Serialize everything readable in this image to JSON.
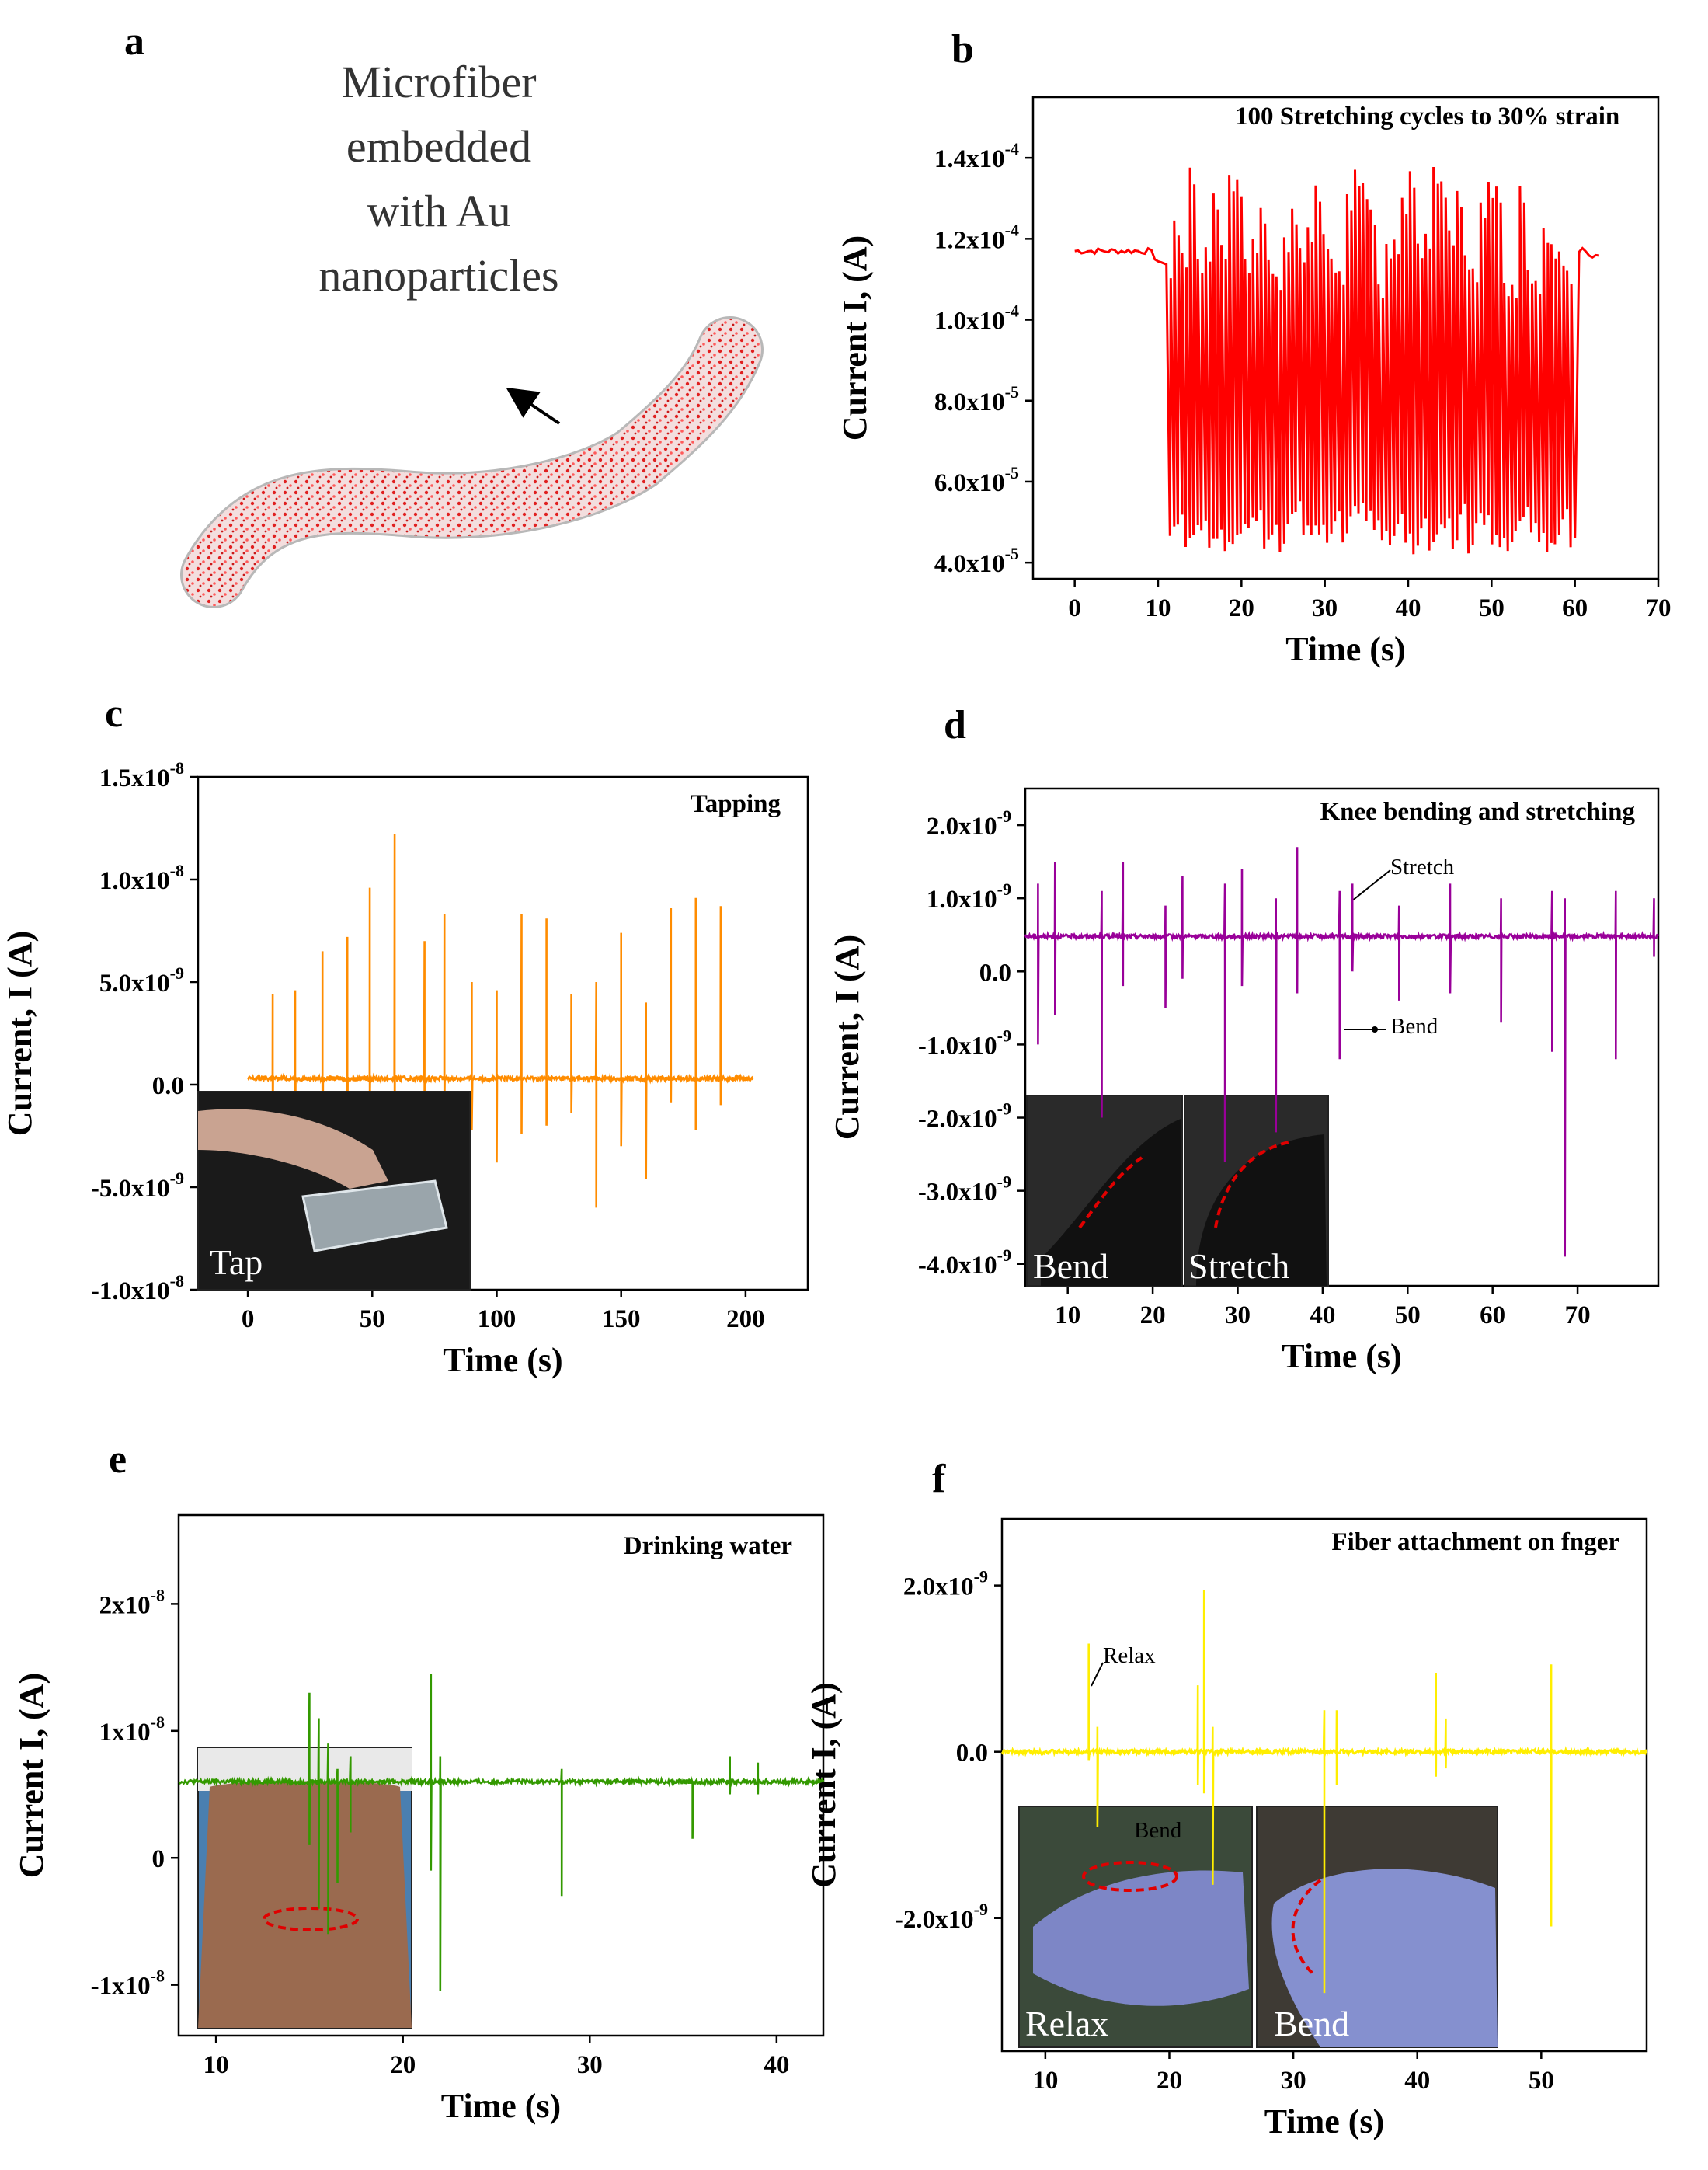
{
  "panel_labels": [
    "a",
    "b",
    "c",
    "d",
    "e",
    "f"
  ],
  "panel_a": {
    "caption_lines": [
      "Microfiber",
      "embedded",
      "with Au",
      "nanoparticles"
    ]
  },
  "chart_data": [
    {
      "id": "b",
      "type": "line",
      "title": "100 Stretching cycles to 30% strain",
      "xlabel": "Time (s)",
      "ylabel": "Current I, (A)",
      "xlim": [
        -5,
        70
      ],
      "ylim": [
        3.6e-05,
        0.000155
      ],
      "xticks": [
        "0",
        "10",
        "20",
        "30",
        "40",
        "50",
        "60",
        "70"
      ],
      "yticks": [
        {
          "mant": "4.0x10",
          "exp": "-5",
          "v": 4e-05
        },
        {
          "mant": "6.0x10",
          "exp": "-5",
          "v": 6e-05
        },
        {
          "mant": "8.0x10",
          "exp": "-5",
          "v": 8e-05
        },
        {
          "mant": "1.0x10",
          "exp": "-4",
          "v": 0.0001
        },
        {
          "mant": "1.2x10",
          "exp": "-4",
          "v": 0.00012
        },
        {
          "mant": "1.4x10",
          "exp": "-4",
          "v": 0.00014
        }
      ],
      "color": "#ff0000",
      "series": [
        {
          "kind": "cycles",
          "baseline_start": 0.000117,
          "baseline_end": 0.000116,
          "t_start": 11,
          "t_end": 60,
          "flat_before": [
            0,
            10.5
          ],
          "flat_after": [
            60.5,
            63
          ],
          "cycles": 52,
          "high_range": [
            0.000108,
            0.000138
          ],
          "low_range": [
            4.2e-05,
            5.3e-05
          ]
        }
      ]
    },
    {
      "id": "c",
      "type": "line",
      "title": "Tapping",
      "xlabel": "Time (s)",
      "ylabel": "Current, I (A)",
      "xlim": [
        -20,
        225
      ],
      "ylim": [
        -1e-08,
        1.5e-08
      ],
      "xticks": [
        "0",
        "50",
        "100",
        "150",
        "200"
      ],
      "yticks": [
        {
          "mant": "-1.0x10",
          "exp": "-8",
          "v": -1e-08
        },
        {
          "mant": "-5.0x10",
          "exp": "-9",
          "v": -5e-09
        },
        {
          "mant": "0.0",
          "exp": "",
          "v": 0
        },
        {
          "mant": "5.0x10",
          "exp": "-9",
          "v": 5e-09
        },
        {
          "mant": "1.0x10",
          "exp": "-8",
          "v": 1e-08
        },
        {
          "mant": "1.5x10",
          "exp": "-8",
          "v": 1.5e-08
        }
      ],
      "color": "#ff8c00",
      "baseline": 3e-10,
      "t_range": [
        0,
        203
      ],
      "spikes": [
        {
          "t": 10,
          "hi": 4.4e-09,
          "lo": -2e-09
        },
        {
          "t": 19,
          "hi": 4.6e-09,
          "lo": -6e-09
        },
        {
          "t": 30,
          "hi": 6.5e-09,
          "lo": -7.3e-09
        },
        {
          "t": 40,
          "hi": 7.2e-09,
          "lo": -2.8e-09
        },
        {
          "t": 49,
          "hi": 9.6e-09,
          "lo": -9e-10
        },
        {
          "t": 59,
          "hi": 1.22e-08,
          "lo": -2.2e-09
        },
        {
          "t": 71,
          "hi": 7e-09,
          "lo": -1.6e-09
        },
        {
          "t": 79,
          "hi": 8.3e-09,
          "lo": -9e-10
        },
        {
          "t": 90,
          "hi": 5e-09,
          "lo": -2.2e-09
        },
        {
          "t": 100,
          "hi": 4.6e-09,
          "lo": -3.8e-09
        },
        {
          "t": 110,
          "hi": 8.3e-09,
          "lo": -2.4e-09
        },
        {
          "t": 120,
          "hi": 8.1e-09,
          "lo": -2e-09
        },
        {
          "t": 130,
          "hi": 4.4e-09,
          "lo": -1.4e-09
        },
        {
          "t": 140,
          "hi": 5e-09,
          "lo": -6e-09
        },
        {
          "t": 150,
          "hi": 7.4e-09,
          "lo": -3e-09
        },
        {
          "t": 160,
          "hi": 4e-09,
          "lo": -4.6e-09
        },
        {
          "t": 170,
          "hi": 8.6e-09,
          "lo": -9e-10
        },
        {
          "t": 180,
          "hi": 9.1e-09,
          "lo": -2.2e-09
        },
        {
          "t": 190,
          "hi": 8.7e-09,
          "lo": -1e-09
        }
      ],
      "inset": {
        "label": "Tap"
      }
    },
    {
      "id": "d",
      "type": "line",
      "title": "Knee bending and stretching",
      "xlabel": "Time (s)",
      "ylabel": "Current, I (A)",
      "xlim": [
        5,
        79.5
      ],
      "ylim": [
        -4.3e-09,
        2.5e-09
      ],
      "xticks": [
        "10",
        "20",
        "30",
        "40",
        "50",
        "60",
        "70"
      ],
      "yticks": [
        {
          "mant": "-4.0x10",
          "exp": "-9",
          "v": -4e-09
        },
        {
          "mant": "-3.0x10",
          "exp": "-9",
          "v": -3e-09
        },
        {
          "mant": "-2.0x10",
          "exp": "-9",
          "v": -2e-09
        },
        {
          "mant": "-1.0x10",
          "exp": "-9",
          "v": -1e-09
        },
        {
          "mant": "0.0",
          "exp": "",
          "v": 0
        },
        {
          "mant": "1.0x10",
          "exp": "-9",
          "v": 1e-09
        },
        {
          "mant": "2.0x10",
          "exp": "-9",
          "v": 2e-09
        }
      ],
      "color": "#990099",
      "baseline": 4.8e-10,
      "t_range": [
        5,
        79.5
      ],
      "spikes": [
        {
          "t": 6.5,
          "hi": 1.2e-09,
          "lo": -1e-09
        },
        {
          "t": 8.5,
          "hi": 1.5e-09,
          "lo": -6e-10
        },
        {
          "t": 14,
          "hi": 1.1e-09,
          "lo": -2e-09
        },
        {
          "t": 16.5,
          "hi": 1.5e-09,
          "lo": -2e-10
        },
        {
          "t": 21.5,
          "hi": 9e-10,
          "lo": -5e-10
        },
        {
          "t": 23.5,
          "hi": 1.3e-09,
          "lo": -1e-10
        },
        {
          "t": 28.5,
          "hi": 1.2e-09,
          "lo": -2.6e-09
        },
        {
          "t": 30.5,
          "hi": 1.4e-09,
          "lo": -2e-10
        },
        {
          "t": 34.5,
          "hi": 1e-09,
          "lo": -2.2e-09
        },
        {
          "t": 37,
          "hi": 1.7e-09,
          "lo": -3e-10
        },
        {
          "t": 42,
          "hi": 1.1e-09,
          "lo": -1.2e-09
        },
        {
          "t": 43.5,
          "hi": 1.2e-09,
          "lo": 0.0
        },
        {
          "t": 49,
          "hi": 9e-10,
          "lo": -4e-10
        },
        {
          "t": 55,
          "hi": 1.2e-09,
          "lo": -3e-10
        },
        {
          "t": 61,
          "hi": 1e-09,
          "lo": -7e-10
        },
        {
          "t": 67,
          "hi": 1.1e-09,
          "lo": -1.1e-09
        },
        {
          "t": 68.5,
          "hi": 1e-09,
          "lo": -3.9e-09
        },
        {
          "t": 74.5,
          "hi": 1.1e-09,
          "lo": -1.2e-09
        },
        {
          "t": 79,
          "hi": 1e-09,
          "lo": 2e-10
        }
      ],
      "annotations": [
        "Stretch",
        "Bend"
      ],
      "inset": {
        "labels": [
          "Bend",
          "Stretch"
        ]
      }
    },
    {
      "id": "e",
      "type": "line",
      "title": "Drinking water",
      "xlabel": "Time (s)",
      "ylabel": "Current I, (A)",
      "xlim": [
        8,
        42.5
      ],
      "ylim": [
        -1.4e-08,
        2.7e-08
      ],
      "xticks": [
        "10",
        "20",
        "30",
        "40"
      ],
      "yticks": [
        {
          "mant": "-1x10",
          "exp": "-8",
          "v": -1e-08
        },
        {
          "mant": "0",
          "exp": "",
          "v": 0
        },
        {
          "mant": "1x10",
          "exp": "-8",
          "v": 1e-08
        },
        {
          "mant": "2x10",
          "exp": "-8",
          "v": 2e-08
        }
      ],
      "color": "#339900",
      "baseline": 6e-09,
      "t_range": [
        8,
        42.5
      ],
      "spikes": [
        {
          "t": 15,
          "hi": 1.3e-08,
          "lo": 1e-09
        },
        {
          "t": 15.5,
          "hi": 1.1e-08,
          "lo": -4e-09
        },
        {
          "t": 16,
          "hi": 9e-09,
          "lo": -6e-09
        },
        {
          "t": 16.5,
          "hi": 7e-09,
          "lo": -2e-09
        },
        {
          "t": 17.2,
          "hi": 8e-09,
          "lo": 2e-09
        },
        {
          "t": 21.5,
          "hi": 1.45e-08,
          "lo": -1e-09
        },
        {
          "t": 22,
          "hi": 8e-09,
          "lo": -1.05e-08
        },
        {
          "t": 28.5,
          "hi": 7e-09,
          "lo": -3e-09
        },
        {
          "t": 35.5,
          "hi": 6e-09,
          "lo": 1.5e-09
        },
        {
          "t": 37.5,
          "hi": 8e-09,
          "lo": 5e-09
        },
        {
          "t": 39,
          "hi": 7.5e-09,
          "lo": 5e-09
        }
      ]
    },
    {
      "id": "f",
      "type": "line",
      "title": "Fiber attachment on fnger",
      "xlabel": "Time (s)",
      "ylabel": "Current I, (A)",
      "xlim": [
        6.5,
        58.5
      ],
      "ylim": [
        -3.6e-09,
        2.8e-09
      ],
      "xticks": [
        "10",
        "20",
        "30",
        "40",
        "50"
      ],
      "yticks": [
        {
          "mant": "-2.0x10",
          "exp": "-9",
          "v": -2e-09
        },
        {
          "mant": "0.0",
          "exp": "",
          "v": 0
        },
        {
          "mant": "2.0x10",
          "exp": "-9",
          "v": 2e-09
        }
      ],
      "color": "#ffee00",
      "baseline": 0.0,
      "t_range": [
        6.5,
        58.5
      ],
      "spikes": [
        {
          "t": 13.5,
          "hi": 1.3e-09,
          "lo": -1e-10
        },
        {
          "t": 14.2,
          "hi": 3e-10,
          "lo": -9e-10
        },
        {
          "t": 22.3,
          "hi": 8e-10,
          "lo": -4e-10
        },
        {
          "t": 22.8,
          "hi": 1.95e-09,
          "lo": -5e-10
        },
        {
          "t": 23.5,
          "hi": 3e-10,
          "lo": -1.6e-09
        },
        {
          "t": 32.5,
          "hi": 5e-10,
          "lo": -2.9e-09
        },
        {
          "t": 33.5,
          "hi": 5e-10,
          "lo": -4e-10
        },
        {
          "t": 41.5,
          "hi": 9.5e-10,
          "lo": -3e-10
        },
        {
          "t": 42.3,
          "hi": 4e-10,
          "lo": -2e-10
        },
        {
          "t": 50.8,
          "hi": 1.05e-09,
          "lo": -2.1e-09
        }
      ],
      "annotations": [
        "Relax",
        "Bend"
      ],
      "inset": {
        "labels": [
          "Relax",
          "Bend"
        ]
      }
    }
  ]
}
